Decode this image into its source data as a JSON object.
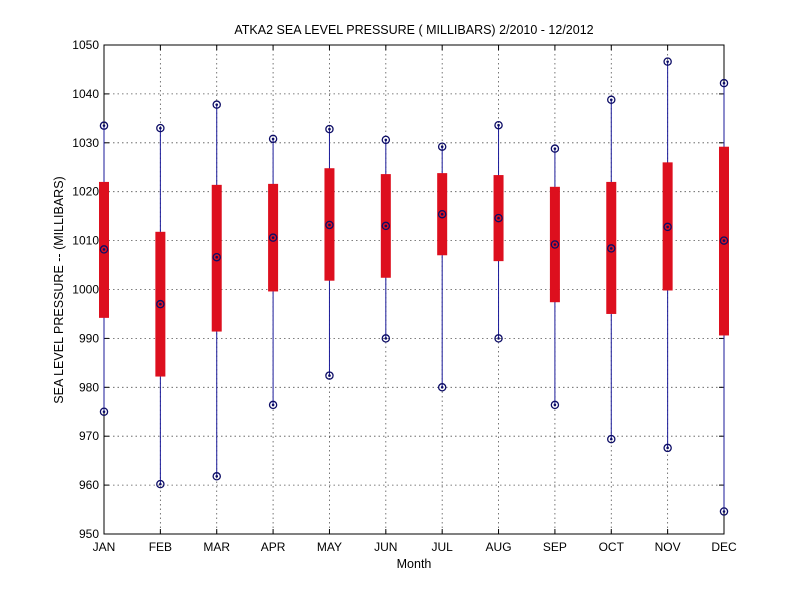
{
  "chart_data": {
    "type": "boxplot",
    "title": "ATKA2  SEA LEVEL PRESSURE ( MILLIBARS) 2/2010 - 12/2012",
    "xlabel": "Month",
    "ylabel": "SEA LEVEL PRESSURE -- (MILLIBARS)",
    "ylim": [
      950,
      1050
    ],
    "yticks": [
      950,
      960,
      970,
      980,
      990,
      1000,
      1010,
      1020,
      1030,
      1040,
      1050
    ],
    "grid": true,
    "categories": [
      "JAN",
      "FEB",
      "MAR",
      "APR",
      "MAY",
      "JUN",
      "JUL",
      "AUG",
      "SEP",
      "OCT",
      "NOV",
      "DEC"
    ],
    "series": [
      {
        "max": [
          1033.5,
          1033.0,
          1037.8,
          1030.8,
          1032.8,
          1030.6,
          1029.2,
          1033.6,
          1028.8,
          1038.8,
          1046.6,
          1042.2
        ],
        "q3": [
          1022.0,
          1011.8,
          1021.4,
          1021.6,
          1024.8,
          1023.6,
          1023.8,
          1023.4,
          1021.0,
          1022.0,
          1026.0,
          1029.2
        ],
        "median": [
          1008.2,
          997.0,
          1006.6,
          1010.6,
          1013.2,
          1013.0,
          1015.4,
          1014.6,
          1009.2,
          1008.4,
          1012.8,
          1010.0
        ],
        "q1": [
          994.2,
          982.2,
          991.4,
          999.6,
          1001.8,
          1002.4,
          1007.0,
          1005.8,
          997.4,
          995.0,
          999.8,
          990.6
        ],
        "min": [
          975.0,
          960.2,
          961.8,
          976.4,
          982.4,
          990.0,
          980.0,
          990.0,
          976.4,
          969.4,
          967.6,
          954.6
        ]
      }
    ]
  }
}
